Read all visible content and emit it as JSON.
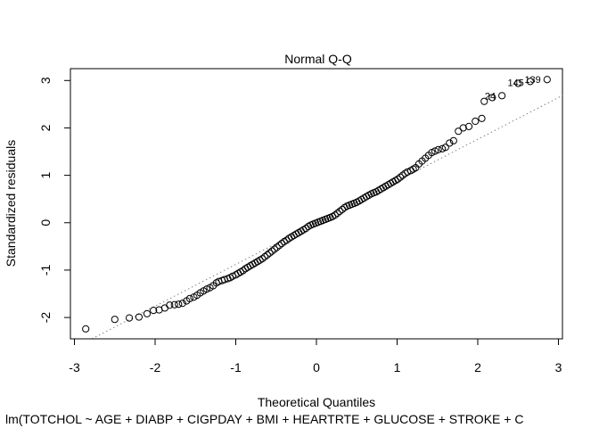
{
  "chart_data": {
    "type": "scatter",
    "title": "Normal Q-Q",
    "xlabel": "Theoretical Quantiles",
    "ylabel": "Standardized residuals",
    "subtitle": "lm(TOTCHOL ~ AGE + DIABP + CIGPDAY + BMI + HEARTRTE + GLUCOSE + STROKE + C",
    "xlim": [
      -3.05,
      3.05
    ],
    "ylim": [
      -2.45,
      3.25
    ],
    "x_ticks": [
      -3,
      -2,
      -1,
      0,
      1,
      2,
      3
    ],
    "y_ticks": [
      -2,
      -1,
      0,
      1,
      2,
      3
    ],
    "grid": false,
    "reference_line": {
      "slope": 0.88,
      "intercept": 0.0,
      "style": "dotted",
      "color": "#808080"
    },
    "annotations": [
      {
        "label": "139",
        "x": 2.86,
        "y": 3.02
      },
      {
        "label": "145",
        "x": 2.65,
        "y": 2.96
      },
      {
        "label": "24",
        "x": 2.3,
        "y": 2.68
      }
    ],
    "series": [
      {
        "points": [
          [
            -2.86,
            -2.24
          ],
          [
            -2.5,
            -2.04
          ],
          [
            -2.32,
            -2.01
          ],
          [
            -2.2,
            -1.99
          ],
          [
            -2.1,
            -1.92
          ],
          [
            -2.02,
            -1.85
          ],
          [
            -1.95,
            -1.84
          ],
          [
            -1.88,
            -1.8
          ],
          [
            -1.82,
            -1.74
          ],
          [
            -1.76,
            -1.73
          ],
          [
            -1.71,
            -1.72
          ],
          [
            -1.66,
            -1.7
          ],
          [
            -1.61,
            -1.65
          ],
          [
            -1.57,
            -1.6
          ],
          [
            -1.52,
            -1.57
          ],
          [
            -1.48,
            -1.53
          ],
          [
            -1.44,
            -1.48
          ],
          [
            -1.4,
            -1.44
          ],
          [
            -1.36,
            -1.4
          ],
          [
            -1.32,
            -1.37
          ],
          [
            -1.28,
            -1.33
          ],
          [
            -1.24,
            -1.27
          ],
          [
            -1.21,
            -1.24
          ],
          [
            -1.17,
            -1.22
          ],
          [
            -1.14,
            -1.2
          ],
          [
            -1.1,
            -1.18
          ],
          [
            -1.07,
            -1.16
          ],
          [
            -1.04,
            -1.13
          ],
          [
            -1.0,
            -1.1
          ],
          [
            -0.97,
            -1.07
          ],
          [
            -0.94,
            -1.04
          ],
          [
            -0.91,
            -1.01
          ],
          [
            -0.88,
            -0.97
          ],
          [
            -0.85,
            -0.94
          ],
          [
            -0.82,
            -0.91
          ],
          [
            -0.79,
            -0.88
          ],
          [
            -0.76,
            -0.85
          ],
          [
            -0.73,
            -0.82
          ],
          [
            -0.7,
            -0.79
          ],
          [
            -0.67,
            -0.76
          ],
          [
            -0.64,
            -0.72
          ],
          [
            -0.61,
            -0.68
          ],
          [
            -0.58,
            -0.64
          ],
          [
            -0.55,
            -0.6
          ],
          [
            -0.52,
            -0.56
          ],
          [
            -0.49,
            -0.52
          ],
          [
            -0.46,
            -0.48
          ],
          [
            -0.43,
            -0.44
          ],
          [
            -0.4,
            -0.4
          ],
          [
            -0.37,
            -0.37
          ],
          [
            -0.34,
            -0.33
          ],
          [
            -0.31,
            -0.3
          ],
          [
            -0.28,
            -0.27
          ],
          [
            -0.25,
            -0.24
          ],
          [
            -0.22,
            -0.21
          ],
          [
            -0.19,
            -0.18
          ],
          [
            -0.16,
            -0.15
          ],
          [
            -0.13,
            -0.12
          ],
          [
            -0.1,
            -0.08
          ],
          [
            -0.07,
            -0.05
          ],
          [
            -0.04,
            -0.03
          ],
          [
            -0.01,
            -0.01
          ],
          [
            0.02,
            0.01
          ],
          [
            0.05,
            0.03
          ],
          [
            0.08,
            0.05
          ],
          [
            0.11,
            0.07
          ],
          [
            0.14,
            0.09
          ],
          [
            0.17,
            0.11
          ],
          [
            0.2,
            0.13
          ],
          [
            0.23,
            0.16
          ],
          [
            0.26,
            0.2
          ],
          [
            0.29,
            0.24
          ],
          [
            0.32,
            0.28
          ],
          [
            0.35,
            0.32
          ],
          [
            0.38,
            0.35
          ],
          [
            0.41,
            0.37
          ],
          [
            0.44,
            0.39
          ],
          [
            0.47,
            0.41
          ],
          [
            0.5,
            0.43
          ],
          [
            0.53,
            0.46
          ],
          [
            0.56,
            0.49
          ],
          [
            0.59,
            0.52
          ],
          [
            0.62,
            0.55
          ],
          [
            0.65,
            0.58
          ],
          [
            0.68,
            0.61
          ],
          [
            0.71,
            0.63
          ],
          [
            0.74,
            0.65
          ],
          [
            0.77,
            0.68
          ],
          [
            0.8,
            0.71
          ],
          [
            0.83,
            0.74
          ],
          [
            0.86,
            0.77
          ],
          [
            0.89,
            0.8
          ],
          [
            0.92,
            0.83
          ],
          [
            0.95,
            0.86
          ],
          [
            0.98,
            0.89
          ],
          [
            1.01,
            0.92
          ],
          [
            1.04,
            0.96
          ],
          [
            1.07,
            1.0
          ],
          [
            1.1,
            1.04
          ],
          [
            1.13,
            1.07
          ],
          [
            1.17,
            1.1
          ],
          [
            1.2,
            1.13
          ],
          [
            1.23,
            1.16
          ],
          [
            1.27,
            1.24
          ],
          [
            1.31,
            1.3
          ],
          [
            1.35,
            1.36
          ],
          [
            1.39,
            1.42
          ],
          [
            1.43,
            1.48
          ],
          [
            1.47,
            1.51
          ],
          [
            1.51,
            1.54
          ],
          [
            1.56,
            1.56
          ],
          [
            1.6,
            1.59
          ],
          [
            1.65,
            1.68
          ],
          [
            1.7,
            1.73
          ],
          [
            1.76,
            1.93
          ],
          [
            1.82,
            2.0
          ],
          [
            1.89,
            2.03
          ],
          [
            1.97,
            2.14
          ],
          [
            2.05,
            2.2
          ],
          [
            2.08,
            2.56
          ],
          [
            2.18,
            2.64
          ],
          [
            2.3,
            2.68
          ],
          [
            2.5,
            2.94
          ],
          [
            2.65,
            2.98
          ],
          [
            2.86,
            3.02
          ]
        ]
      }
    ]
  }
}
